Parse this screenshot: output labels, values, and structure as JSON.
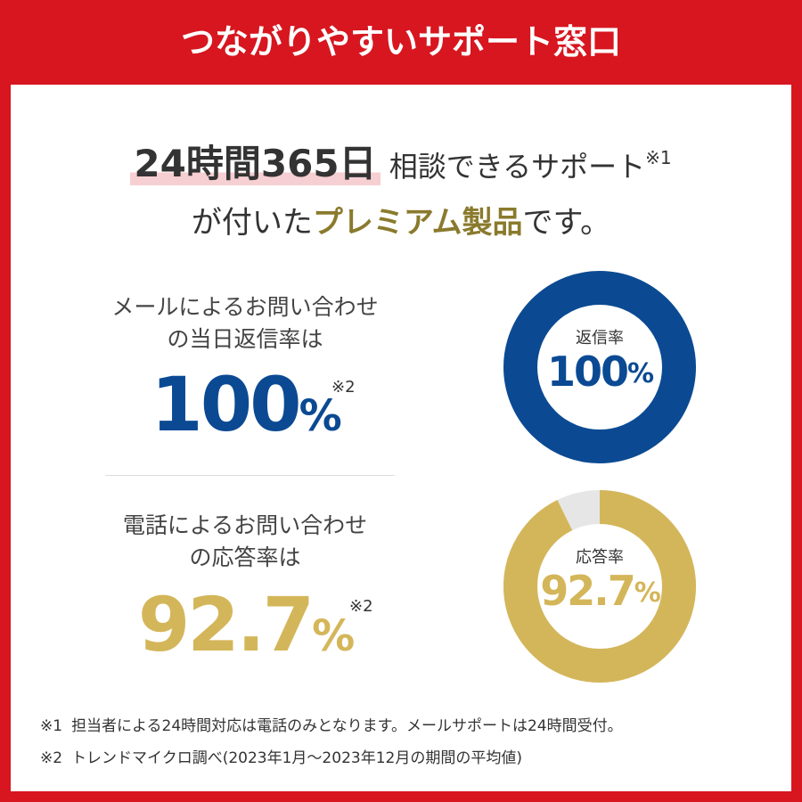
{
  "header": {
    "title": "つながりやすいサポート窓口"
  },
  "headline": {
    "highlight": "24時間365日",
    "text": "相談できるサポート",
    "note_mark": "※1",
    "line2_prefix": "が付いた",
    "line2_emphasis": "プレミアム製品",
    "line2_suffix": "です。"
  },
  "stats": [
    {
      "line1": "メールによるお問い合わせ",
      "line2": "の当日返信率は",
      "note_mark": "※2"
    },
    {
      "line1": "電話によるお問い合わせ",
      "line2": "の応答率は",
      "note_mark": "※2"
    }
  ],
  "chart_data": [
    {
      "type": "donut",
      "label": "返信率",
      "values": [
        100
      ],
      "value_labels": [
        "100%"
      ],
      "color": "#0b4a93"
    },
    {
      "type": "donut",
      "label": "応答率",
      "values": [
        92.7
      ],
      "value_labels": [
        "92.7%"
      ],
      "color": "#d4b65a"
    }
  ],
  "footnotes": [
    {
      "mark": "※1",
      "text": "担当者による24時間対応は電話のみとなります。メールサポートは24時間受付。"
    },
    {
      "mark": "※2",
      "text": "トレンドマイクロ調べ(2023年1月～2023年12月の期間の平均値)"
    }
  ]
}
